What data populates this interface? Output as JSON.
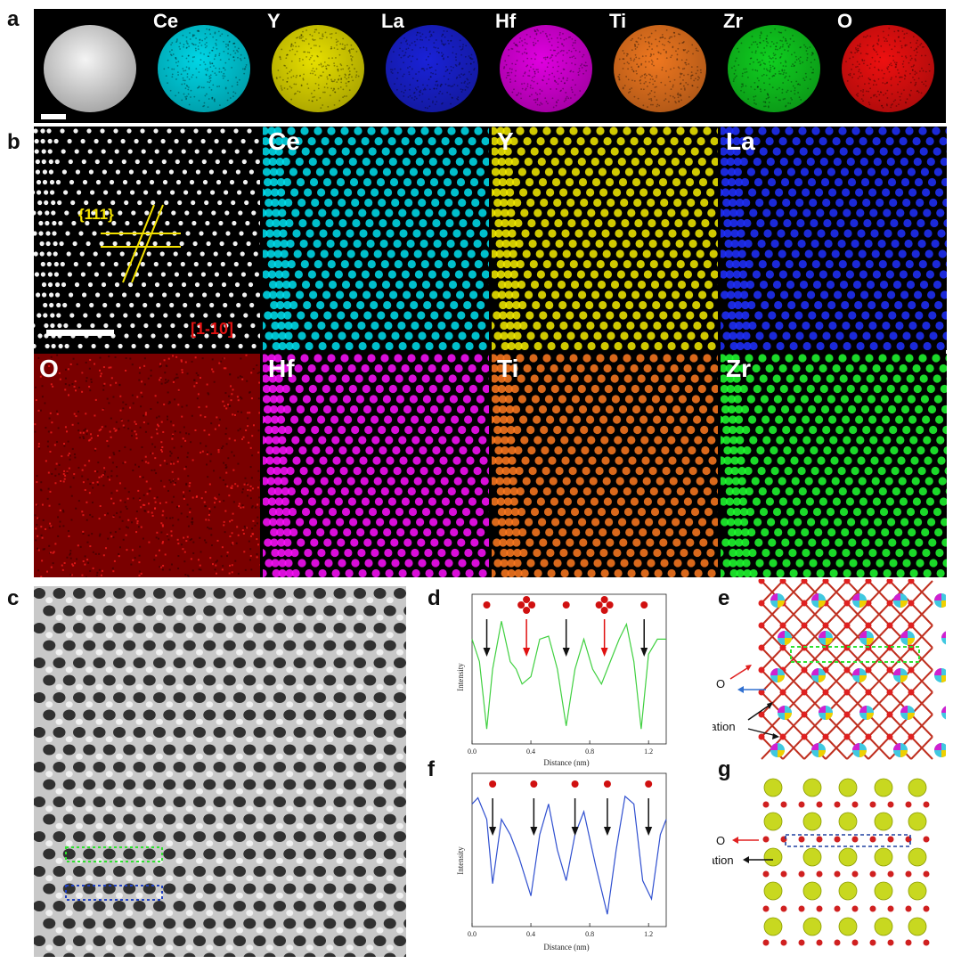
{
  "figure": {
    "panel_labels": {
      "a": "a",
      "b": "b",
      "c": "c",
      "d": "d",
      "e": "e",
      "f": "f",
      "g": "g"
    }
  },
  "panel_a": {
    "tiles": [
      {
        "label": "",
        "color": "#d9d9d9"
      },
      {
        "label": "Ce",
        "color": "#00d6e6"
      },
      {
        "label": "Y",
        "color": "#e8e000"
      },
      {
        "label": "La",
        "color": "#1a22d8"
      },
      {
        "label": "Hf",
        "color": "#e000e0"
      },
      {
        "label": "Ti",
        "color": "#f07820"
      },
      {
        "label": "Zr",
        "color": "#10d020"
      },
      {
        "label": "O",
        "color": "#ee1010"
      }
    ]
  },
  "panel_b": {
    "tiles": [
      {
        "label": "",
        "color": "#ffffff",
        "kind": "lattice"
      },
      {
        "label": "Ce",
        "color": "#00e0f0",
        "kind": "lattice"
      },
      {
        "label": "Y",
        "color": "#f5ec00",
        "kind": "lattice"
      },
      {
        "label": "La",
        "color": "#2030ff",
        "kind": "lattice"
      },
      {
        "label": "O",
        "color": "#d01010",
        "kind": "noise"
      },
      {
        "label": "Hf",
        "color": "#ff10ff",
        "kind": "lattice"
      },
      {
        "label": "Ti",
        "color": "#ff7a20",
        "kind": "lattice"
      },
      {
        "label": "Zr",
        "color": "#20ff30",
        "kind": "lattice"
      }
    ],
    "plane_label": "{111}",
    "zone_axis": "[1-10]"
  },
  "panel_d": {
    "xlabel": "Distance (nm)",
    "ylabel": "Intensity",
    "xticks": [
      "0.0",
      "0.4",
      "0.8",
      "1.2"
    ],
    "line_color": "#40d040",
    "arrow_colors": [
      "#111111",
      "#e01010",
      "#111111",
      "#e01010",
      "#111111"
    ]
  },
  "panel_e": {
    "o_label": "O",
    "cation_label": "Cation"
  },
  "panel_f": {
    "xlabel": "Distance (nm)",
    "ylabel": "Intensity",
    "xticks": [
      "0.0",
      "0.4",
      "0.8",
      "1.2"
    ],
    "line_color": "#3050d0"
  },
  "panel_g": {
    "o_label": "O",
    "cation_label": "Cation"
  }
}
